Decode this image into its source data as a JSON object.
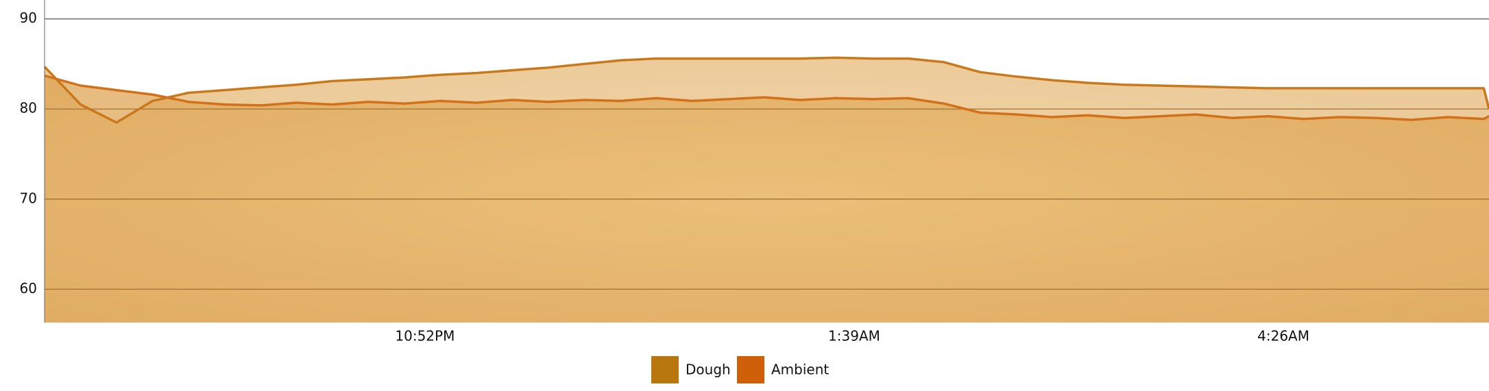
{
  "chart_data": {
    "type": "area",
    "x": [
      0,
      14,
      28,
      42,
      56,
      70,
      84,
      98,
      112,
      126,
      140,
      154,
      168,
      182,
      196,
      210,
      224,
      238,
      252,
      266,
      280,
      294,
      308,
      322,
      336,
      350,
      364,
      378,
      392,
      406,
      420,
      434,
      448,
      462,
      476,
      490,
      504,
      518,
      532,
      546,
      560,
      562
    ],
    "xlim": [
      0,
      562
    ],
    "xticks": [
      {
        "value": 148,
        "label": "10:52PM"
      },
      {
        "value": 315,
        "label": "1:39AM"
      },
      {
        "value": 482,
        "label": "4:26AM"
      }
    ],
    "ylim": [
      56.3,
      92.1
    ],
    "yticks": [
      60,
      70,
      80,
      90
    ],
    "grid": true,
    "series": [
      {
        "name": "Dough",
        "color": "#b8760e",
        "values": [
          84.7,
          80.5,
          78.5,
          80.9,
          81.8,
          82.1,
          82.4,
          82.7,
          83.1,
          83.3,
          83.5,
          83.8,
          84.0,
          84.3,
          84.6,
          85.0,
          85.4,
          85.6,
          85.6,
          85.6,
          85.6,
          85.6,
          85.7,
          85.6,
          85.6,
          85.2,
          84.1,
          83.6,
          83.2,
          82.9,
          82.7,
          82.6,
          82.5,
          82.4,
          82.3,
          82.3,
          82.3,
          82.3,
          82.3,
          82.3,
          82.3,
          80.0
        ]
      },
      {
        "name": "Ambient",
        "color": "#cf5f08",
        "values": [
          83.7,
          82.6,
          82.1,
          81.6,
          80.8,
          80.5,
          80.4,
          80.7,
          80.5,
          80.8,
          80.6,
          80.9,
          80.7,
          81.0,
          80.8,
          81.0,
          80.9,
          81.2,
          80.9,
          81.1,
          81.3,
          81.0,
          81.2,
          81.1,
          81.2,
          80.6,
          79.6,
          79.4,
          79.1,
          79.3,
          79.0,
          79.2,
          79.4,
          79.0,
          79.2,
          78.9,
          79.1,
          79.0,
          78.8,
          79.1,
          78.9,
          79.2
        ]
      }
    ]
  }
}
